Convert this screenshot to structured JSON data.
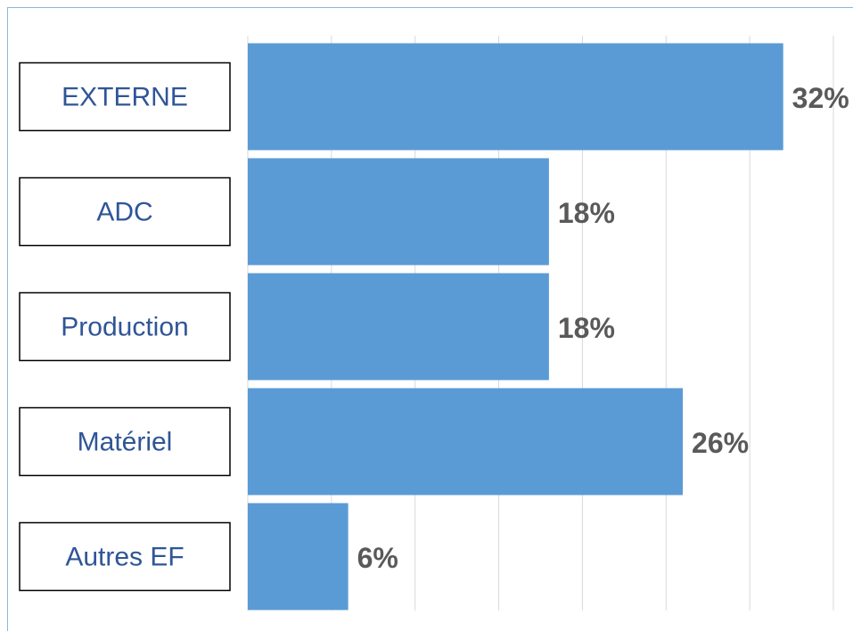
{
  "chart_data": {
    "type": "bar",
    "orientation": "horizontal",
    "categories": [
      "EXTERNE",
      "ADC",
      "Production",
      "Matériel",
      "Autres EF"
    ],
    "values": [
      32,
      18,
      18,
      26,
      6
    ],
    "value_labels": [
      "32%",
      "18%",
      "18%",
      "26%",
      "6%"
    ],
    "color": "#5b9bd5",
    "xlim": [
      0,
      35
    ],
    "xticks": [
      0,
      5,
      10,
      15,
      20,
      25,
      30,
      35
    ],
    "grid": true
  }
}
